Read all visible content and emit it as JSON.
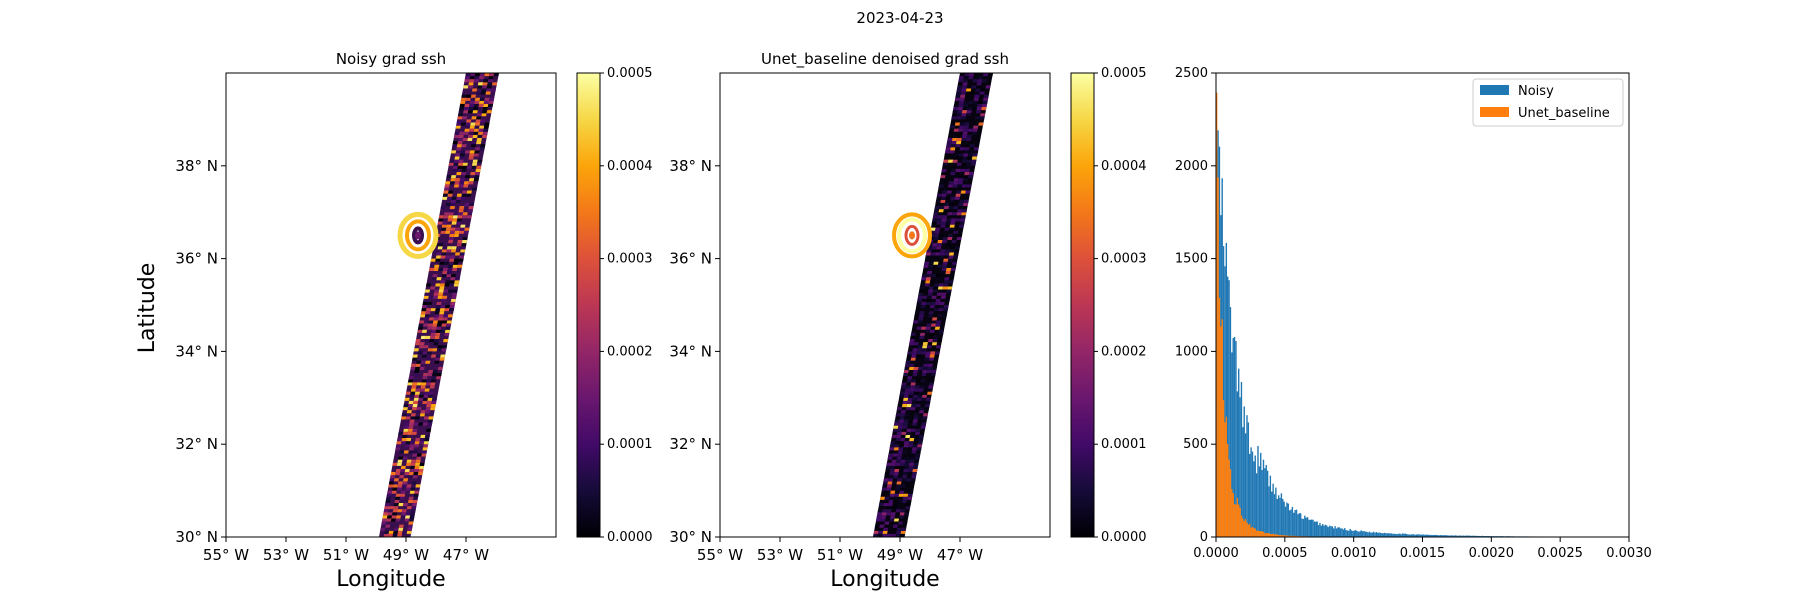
{
  "figure": {
    "suptitle": "2023-04-23"
  },
  "colors": {
    "noisy": "#1f77b4",
    "unet": "#ff7f0e"
  },
  "chart_data": [
    {
      "type": "heatmap",
      "title": "Noisy grad ssh",
      "xlabel": "Longitude",
      "ylabel": "Latitude",
      "xticks": [
        "55° W",
        "53° W",
        "51° W",
        "49° W",
        "47° W"
      ],
      "yticks": [
        "30° N",
        "32° N",
        "34° N",
        "36° N",
        "38° N"
      ],
      "xlim": [
        -55,
        -44
      ],
      "ylim": [
        30,
        40
      ],
      "swath": {
        "bottom_lon": [
          -49.9,
          -48.85
        ],
        "top_lon": [
          -47.0,
          -45.9
        ]
      },
      "eddy": {
        "lon": -48.6,
        "lat": 36.5
      },
      "colormap": "inferno",
      "colorbar": {
        "range": [
          0,
          0.0005
        ],
        "ticks": [
          "0.0000",
          "0.0001",
          "0.0002",
          "0.0003",
          "0.0004",
          "0.0005"
        ]
      }
    },
    {
      "type": "heatmap",
      "title": "Unet_baseline denoised grad ssh",
      "xlabel": "Longitude",
      "ylabel": "",
      "xticks": [
        "55° W",
        "53° W",
        "51° W",
        "49° W",
        "47° W"
      ],
      "yticks": [
        "30° N",
        "32° N",
        "34° N",
        "36° N",
        "38° N"
      ],
      "xlim": [
        -55,
        -44
      ],
      "ylim": [
        30,
        40
      ],
      "swath": {
        "bottom_lon": [
          -49.9,
          -48.85
        ],
        "top_lon": [
          -47.0,
          -45.9
        ]
      },
      "eddy": {
        "lon": -48.6,
        "lat": 36.5
      },
      "colormap": "inferno",
      "colorbar": {
        "range": [
          0,
          0.0005
        ],
        "ticks": [
          "0.0000",
          "0.0001",
          "0.0002",
          "0.0003",
          "0.0004",
          "0.0005"
        ]
      }
    },
    {
      "type": "bar",
      "subtype": "histogram",
      "title": "",
      "xlabel": "",
      "ylabel": "",
      "xlim": [
        0,
        0.003
      ],
      "ylim": [
        0,
        2500
      ],
      "xticks": [
        "0.0000",
        "0.0005",
        "0.0010",
        "0.0015",
        "0.0020",
        "0.0025",
        "0.0030"
      ],
      "yticks": [
        "0",
        "500",
        "1000",
        "1500",
        "2000",
        "2500"
      ],
      "legend_position": "top-right",
      "bin_width": 1e-05,
      "series": [
        {
          "name": "Noisy",
          "peak": 2250,
          "decay": 0.000165,
          "tail_start": 0.0003,
          "tail_amp": 220,
          "tail_decay": 0.00055
        },
        {
          "name": "Unet_baseline",
          "peak": 2330,
          "decay": 5.5e-05,
          "tail_start": 0.00015,
          "tail_amp": 120,
          "tail_decay": 0.00018
        }
      ]
    }
  ]
}
